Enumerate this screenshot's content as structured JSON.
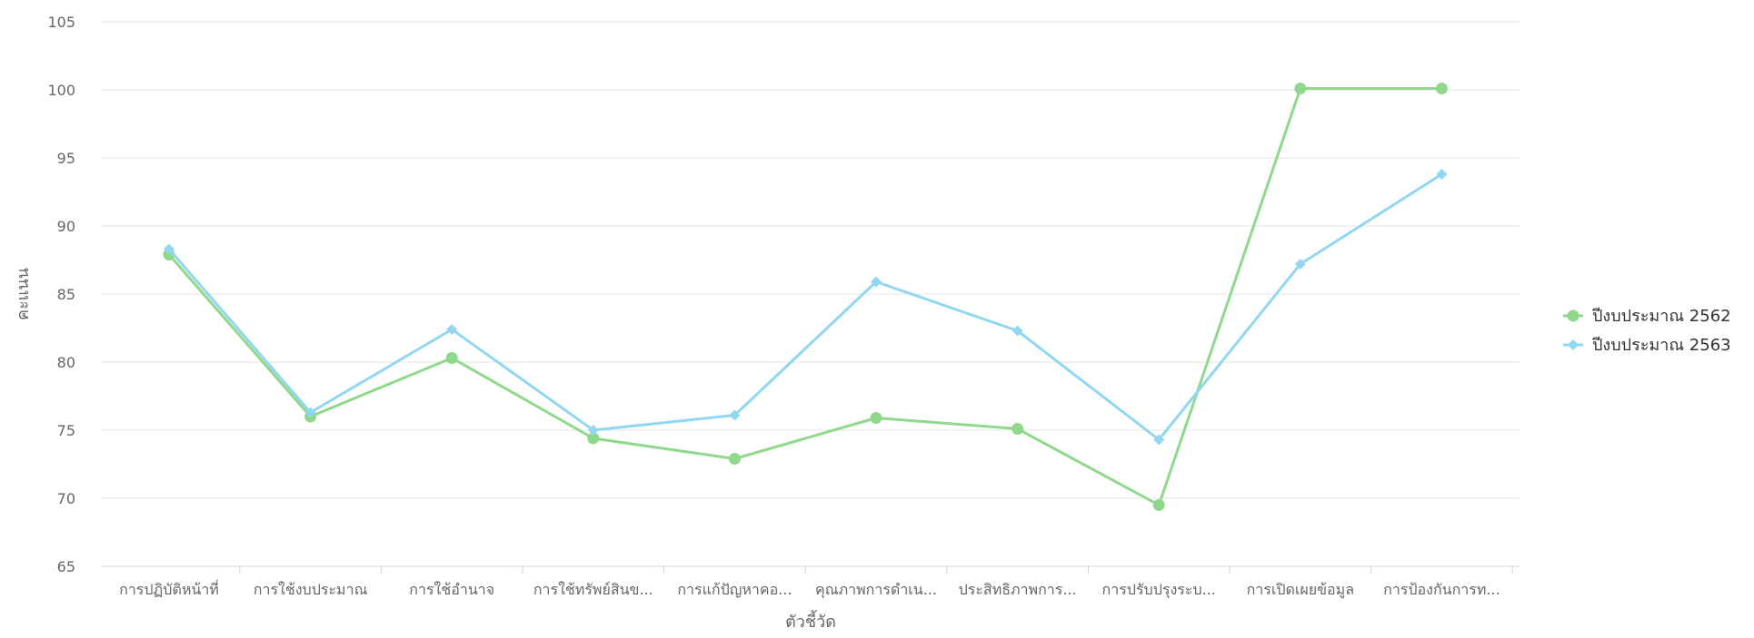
{
  "chart_data": {
    "type": "line",
    "categories": [
      "การปฏิบัติหน้าที่",
      "การใช้งบประมาณ",
      "การใช้อำนาจ",
      "การใช้ทรัพย์สินข...",
      "การแก้ปัญหาคอ...",
      "คุณภาพการดำเน...",
      "ประสิทธิภาพการ...",
      "การปรับปรุงระบ...",
      "การเปิดเผยข้อมูล",
      "การป้องกันการท..."
    ],
    "series": [
      {
        "name": "ปีงบประมาณ 2562",
        "color": "#90d88c",
        "marker": "circle",
        "values": [
          87.9,
          76.0,
          80.3,
          74.4,
          72.9,
          75.9,
          75.1,
          69.5,
          100.1,
          100.1
        ]
      },
      {
        "name": "ปีงบประมาณ 2563",
        "color": "#92d7f2",
        "marker": "diamond",
        "values": [
          88.3,
          76.3,
          82.4,
          75.0,
          76.1,
          85.9,
          82.3,
          74.3,
          87.2,
          93.8
        ]
      }
    ],
    "title": "",
    "xlabel": "ตัวชี้วัด",
    "ylabel": "คะแนน",
    "ylim": [
      65,
      105
    ],
    "yticks": [
      65,
      70,
      75,
      80,
      85,
      90,
      95,
      100,
      105
    ],
    "grid": true,
    "legend_position": "right"
  }
}
